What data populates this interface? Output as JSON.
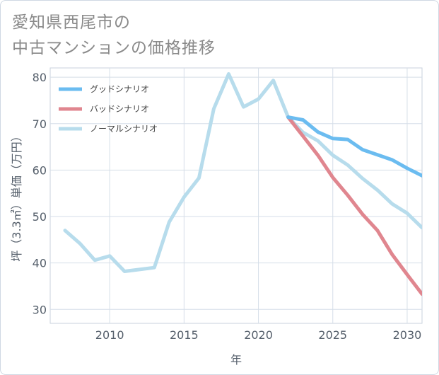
{
  "title_lines": [
    "愛知県西尾市の",
    "中古マンションの価格推移"
  ],
  "chart_data": {
    "type": "line",
    "title": "愛知県西尾市の中古マンションの価格推移",
    "xlabel": "年",
    "ylabel": "坪（3.3㎡）単価（万円）",
    "xlim": [
      2006,
      2031
    ],
    "ylim": [
      27,
      82
    ],
    "xticks": [
      2010,
      2015,
      2020,
      2025,
      2030
    ],
    "yticks": [
      30,
      40,
      50,
      60,
      70,
      80
    ],
    "grid": true,
    "legend_position": "top-left",
    "series": [
      {
        "name": "グッドシナリオ",
        "color": "#6bbcf0",
        "x": [
          2022,
          2023,
          2024,
          2025,
          2026,
          2027,
          2028,
          2029,
          2030,
          2031
        ],
        "y": [
          71.4,
          70.8,
          68.2,
          66.8,
          66.6,
          64.4,
          63.3,
          62.2,
          60.4,
          58.8
        ]
      },
      {
        "name": "バッドシナリオ",
        "color": "#e0868f",
        "x": [
          2022,
          2023,
          2024,
          2025,
          2026,
          2027,
          2028,
          2029,
          2030,
          2031
        ],
        "y": [
          71.4,
          67.3,
          63.2,
          58.4,
          54.6,
          50.5,
          47.0,
          41.8,
          37.5,
          33.3
        ]
      },
      {
        "name": "ノーマルシナリオ",
        "color": "#b7dcec",
        "x": [
          2007,
          2008,
          2009,
          2010,
          2011,
          2012,
          2013,
          2014,
          2015,
          2016,
          2017,
          2018,
          2019,
          2020,
          2021,
          2022,
          2023,
          2024,
          2025,
          2026,
          2027,
          2028,
          2029,
          2030,
          2031
        ],
        "y": [
          47.0,
          44.2,
          40.6,
          41.5,
          38.2,
          38.6,
          39.0,
          48.8,
          54.2,
          58.3,
          73.2,
          80.7,
          73.6,
          75.3,
          79.3,
          71.4,
          68.1,
          66.3,
          63.2,
          61.1,
          58.2,
          55.7,
          52.7,
          50.7,
          47.6
        ]
      }
    ]
  }
}
